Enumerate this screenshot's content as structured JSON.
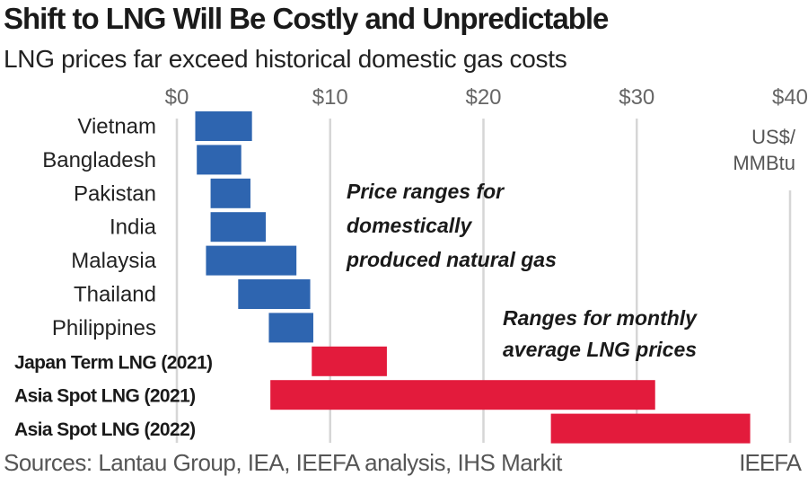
{
  "header": {
    "title": "Shift to LNG Will Be Costly and Unpredictable",
    "subtitle": "LNG prices far exceed historical domestic gas costs"
  },
  "footer": {
    "source": "Sources: Lantau Group, IEA, IEEFA analysis, IHS Markit",
    "credit": "IEEFA"
  },
  "colors": {
    "domestic": "#2e65b0",
    "lng": "#e31b3c",
    "grid": "#d6d6d6"
  },
  "chart_data": {
    "type": "bar",
    "orientation": "horizontal-range",
    "title": "Shift to LNG Will Be Costly and Unpredictable",
    "subtitle": "LNG prices far exceed historical domestic gas costs",
    "xlabel": "US$/MMBtu",
    "unit_label_lines": [
      "US$/",
      "MMBtu"
    ],
    "xlim": [
      0,
      40
    ],
    "xticks": [
      0,
      10,
      20,
      30,
      40
    ],
    "xtick_labels": [
      "$0",
      "$10",
      "$20",
      "$30",
      "$40"
    ],
    "grid": true,
    "categories": [
      {
        "label": "Vietnam",
        "low": 1.2,
        "high": 4.9,
        "group": "domestic"
      },
      {
        "label": "Bangladesh",
        "low": 1.3,
        "high": 4.2,
        "group": "domestic"
      },
      {
        "label": "Pakistan",
        "low": 2.2,
        "high": 4.8,
        "group": "domestic"
      },
      {
        "label": "India",
        "low": 2.2,
        "high": 5.8,
        "group": "domestic"
      },
      {
        "label": "Malaysia",
        "low": 1.9,
        "high": 7.8,
        "group": "domestic"
      },
      {
        "label": "Thailand",
        "low": 4.0,
        "high": 8.7,
        "group": "domestic"
      },
      {
        "label": "Philippines",
        "low": 6.0,
        "high": 8.9,
        "group": "domestic"
      },
      {
        "label": "Japan Term LNG (2021)",
        "low": 8.8,
        "high": 13.7,
        "group": "lng"
      },
      {
        "label": "Asia Spot LNG (2021)",
        "low": 6.1,
        "high": 31.2,
        "group": "lng"
      },
      {
        "label": "Asia Spot LNG (2022)",
        "low": 24.4,
        "high": 37.4,
        "group": "lng"
      }
    ],
    "annotations": [
      {
        "group": "domestic",
        "lines": [
          "Price ranges for",
          "domestically",
          "produced natural gas"
        ]
      },
      {
        "group": "lng",
        "lines": [
          "Ranges for monthly",
          "average LNG prices"
        ]
      }
    ]
  }
}
